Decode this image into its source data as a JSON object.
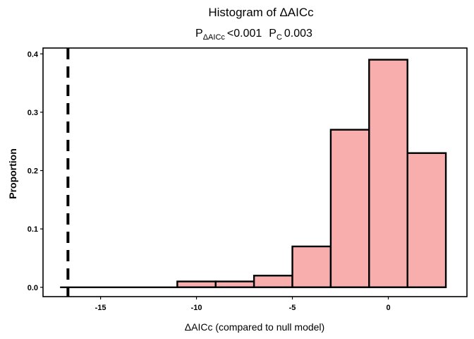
{
  "chart_data": {
    "type": "bar",
    "subtype": "histogram",
    "title": "Histogram of ΔAICc",
    "subtitle": {
      "p1_label": "P",
      "p1_sub": "ΔAICc",
      "p1_value": "<0.001",
      "p2_label": "P",
      "p2_sub": "C",
      "p2_value": "0.003"
    },
    "xlabel": "ΔAICc (compared to null model)",
    "ylabel": "Proportion",
    "xlim": [
      -18,
      4.1
    ],
    "ylim": [
      -0.016,
      0.41
    ],
    "x_ticks": [
      -15,
      -10,
      -5,
      0
    ],
    "x_tick_labels": [
      "-15",
      "-10",
      "-5",
      "0"
    ],
    "y_ticks": [
      0.0,
      0.1,
      0.2,
      0.3,
      0.4
    ],
    "y_tick_labels": [
      "0.0",
      "0.1",
      "0.2",
      "0.3",
      "0.4"
    ],
    "bin_width": 2,
    "bins": [
      {
        "x0": -17,
        "x1": -15,
        "value": 0.0
      },
      {
        "x0": -15,
        "x1": -13,
        "value": 0.0
      },
      {
        "x0": -13,
        "x1": -11,
        "value": 0.0
      },
      {
        "x0": -11,
        "x1": -9,
        "value": 0.01
      },
      {
        "x0": -9,
        "x1": -7,
        "value": 0.01
      },
      {
        "x0": -7,
        "x1": -5,
        "value": 0.02
      },
      {
        "x0": -5,
        "x1": -3,
        "value": 0.07
      },
      {
        "x0": -3,
        "x1": -1,
        "value": 0.27
      },
      {
        "x0": -1,
        "x1": 1,
        "value": 0.39
      },
      {
        "x0": 1,
        "x1": 3,
        "value": 0.23
      }
    ],
    "reference_line": {
      "x": -16.7,
      "style": "dashed"
    },
    "bar_fill": "#f9aeae",
    "bar_stroke": "#000000",
    "grid": false,
    "legend": "none"
  }
}
